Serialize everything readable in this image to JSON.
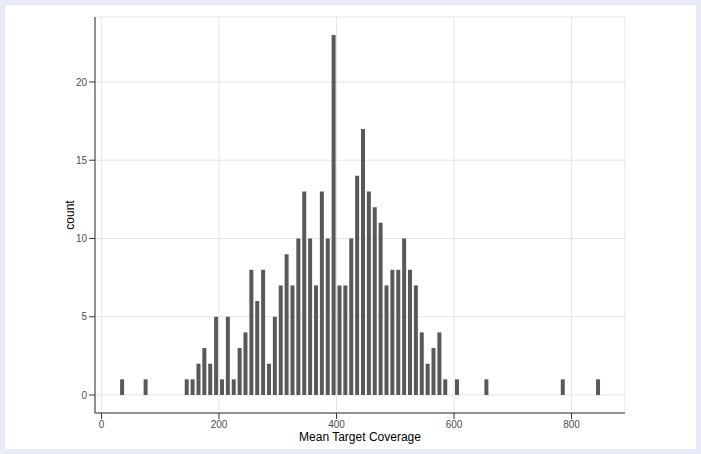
{
  "chart_data": {
    "type": "histogram",
    "xlabel": "Mean Target Coverage",
    "ylabel": "count",
    "bins": [
      30,
      40,
      50,
      60,
      70,
      80,
      90,
      100,
      110,
      120,
      130,
      140,
      150,
      160,
      170,
      180,
      190,
      200,
      210,
      220,
      230,
      240,
      250,
      260,
      270,
      280,
      290,
      300,
      310,
      320,
      330,
      340,
      350,
      360,
      370,
      380,
      390,
      400,
      410,
      420,
      430,
      440,
      450,
      460,
      470,
      480,
      490,
      500,
      510,
      520,
      530,
      540,
      550,
      560,
      570,
      580,
      590,
      600,
      610,
      620,
      630,
      640,
      650,
      660,
      670,
      680,
      690,
      700,
      710,
      720,
      730,
      740,
      750,
      760,
      770,
      780,
      790,
      800,
      810,
      820,
      830,
      840,
      850
    ],
    "counts": [
      1,
      0,
      0,
      0,
      1,
      0,
      0,
      0,
      0,
      0,
      0,
      1,
      1,
      2,
      3,
      2,
      5,
      1,
      5,
      1,
      3,
      4,
      8,
      6,
      8,
      2,
      5,
      7,
      9,
      7,
      10,
      13,
      10,
      7,
      13,
      10,
      23,
      7,
      7,
      10,
      14,
      17,
      13,
      12,
      11,
      7,
      8,
      8,
      10,
      8,
      7,
      4,
      2,
      3,
      4,
      1,
      0,
      1,
      0,
      0,
      0,
      0,
      1,
      0,
      0,
      0,
      0,
      0,
      0,
      0,
      0,
      0,
      0,
      0,
      0,
      1,
      0,
      0,
      0,
      0,
      0,
      1
    ],
    "color": "#595959",
    "xlim": [
      -11,
      891
    ],
    "xticks": [
      0,
      200,
      400,
      600,
      800
    ],
    "ylim": [
      -1.15,
      24.15
    ],
    "yticks": [
      0,
      5,
      10,
      15,
      20
    ],
    "grid": true
  }
}
